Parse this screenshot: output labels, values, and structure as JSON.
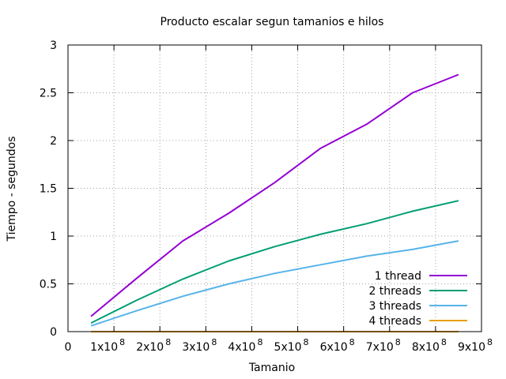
{
  "chart_data": {
    "type": "line",
    "title": "Producto escalar segun tamanios e hilos",
    "xlabel": "Tamanio",
    "ylabel": "Tiempo - segundos",
    "xlim": [
      0,
      900000000
    ],
    "ylim": [
      0,
      3
    ],
    "grid": true,
    "legend_position": "bottom-right",
    "x_ticks": [
      {
        "value": 0,
        "mantissa": "0",
        "exponent": ""
      },
      {
        "value": 100000000,
        "mantissa": "1x10",
        "exponent": "8"
      },
      {
        "value": 200000000,
        "mantissa": "2x10",
        "exponent": "8"
      },
      {
        "value": 300000000,
        "mantissa": "3x10",
        "exponent": "8"
      },
      {
        "value": 400000000,
        "mantissa": "4x10",
        "exponent": "8"
      },
      {
        "value": 500000000,
        "mantissa": "5x10",
        "exponent": "8"
      },
      {
        "value": 600000000,
        "mantissa": "6x10",
        "exponent": "8"
      },
      {
        "value": 700000000,
        "mantissa": "7x10",
        "exponent": "8"
      },
      {
        "value": 800000000,
        "mantissa": "8x10",
        "exponent": "8"
      },
      {
        "value": 900000000,
        "mantissa": "9x10",
        "exponent": "8"
      }
    ],
    "y_ticks": [
      {
        "value": 0,
        "label": "0"
      },
      {
        "value": 0.5,
        "label": "0.5"
      },
      {
        "value": 1,
        "label": "1"
      },
      {
        "value": 1.5,
        "label": "1.5"
      },
      {
        "value": 2,
        "label": "2"
      },
      {
        "value": 2.5,
        "label": "2.5"
      },
      {
        "value": 3,
        "label": "3"
      }
    ],
    "x": [
      50000000,
      150000000,
      250000000,
      350000000,
      450000000,
      550000000,
      650000000,
      750000000,
      850000000
    ],
    "series": [
      {
        "name": "1 thread",
        "color": "#9400d3",
        "values": [
          0.16,
          0.56,
          0.95,
          1.24,
          1.56,
          1.92,
          2.17,
          2.5,
          2.69
        ]
      },
      {
        "name": "2 threads",
        "color": "#009e73",
        "values": [
          0.09,
          0.33,
          0.55,
          0.74,
          0.89,
          1.02,
          1.13,
          1.26,
          1.37
        ]
      },
      {
        "name": "3 threads",
        "color": "#56b4e9",
        "values": [
          0.06,
          0.22,
          0.37,
          0.5,
          0.61,
          0.7,
          0.79,
          0.86,
          0.95
        ]
      },
      {
        "name": "4 threads",
        "color": "#e69f00",
        "values": [
          0.0,
          0.0,
          0.0,
          0.0,
          0.0,
          0.0,
          0.0,
          0.0,
          0.0
        ]
      }
    ]
  }
}
